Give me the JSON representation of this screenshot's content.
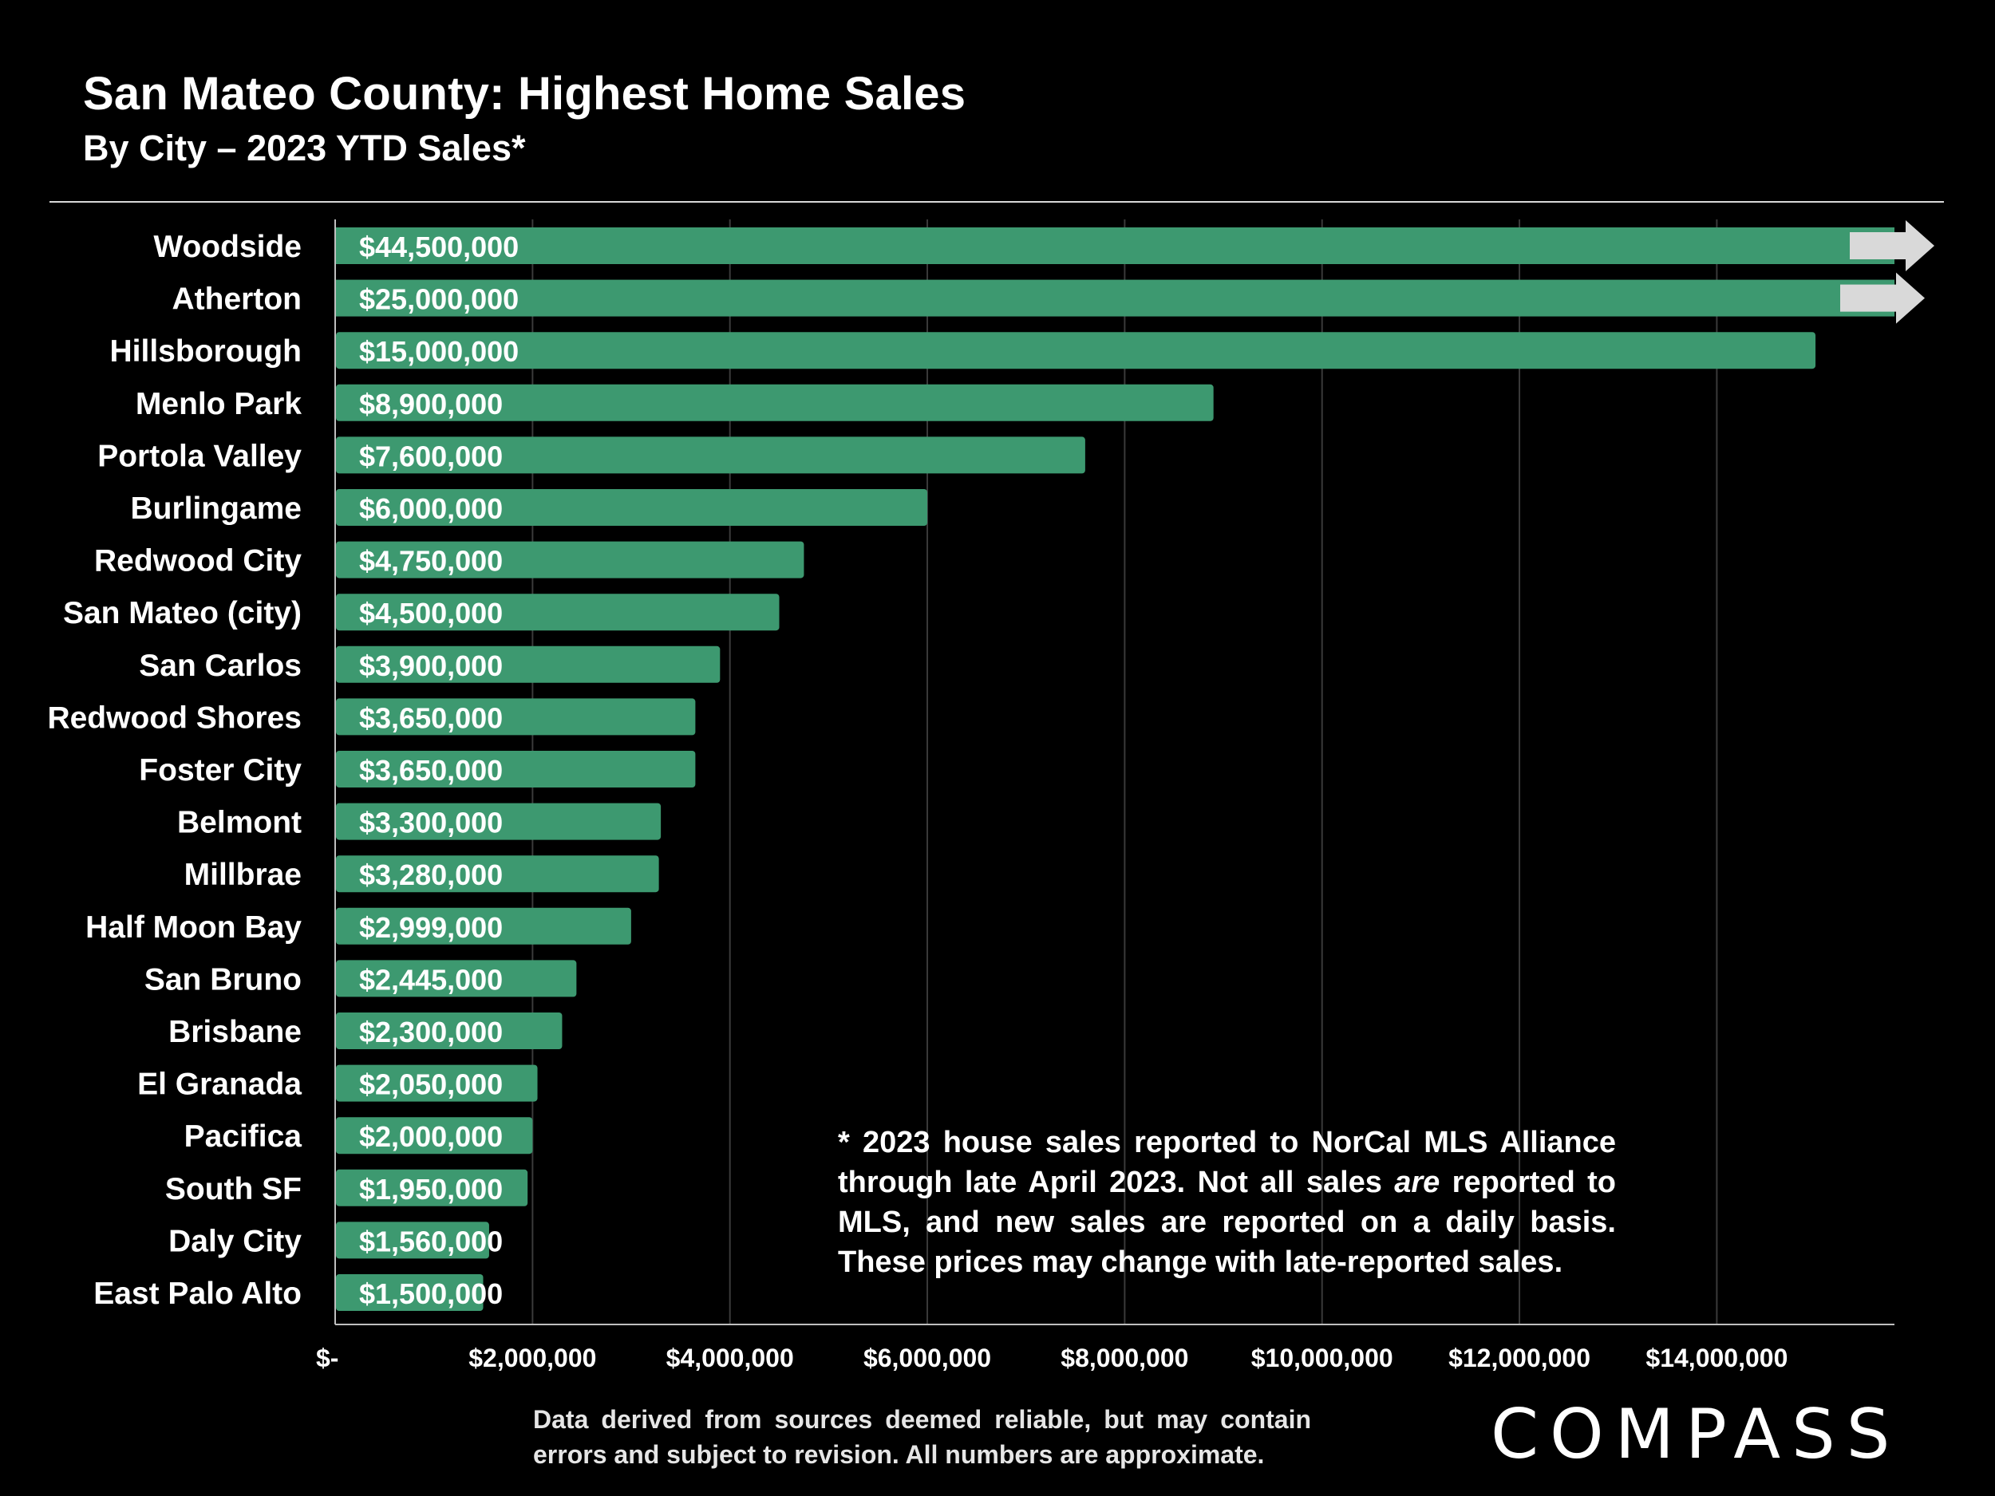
{
  "header": {
    "title": "San Mateo County: Highest Home Sales",
    "subtitle": "By City – 2023 YTD Sales*"
  },
  "chart_data": {
    "type": "bar",
    "orientation": "horizontal",
    "categories": [
      "Woodside",
      "Atherton",
      "Hillsborough",
      "Menlo Park",
      "Portola Valley",
      "Burlingame",
      "Redwood City",
      "San Mateo (city)",
      "San Carlos",
      "Redwood Shores",
      "Foster City",
      "Belmont",
      "Millbrae",
      "Half Moon Bay",
      "San Bruno",
      "Brisbane",
      "El Granada",
      "Pacifica",
      "South SF",
      "Daly City",
      "East Palo Alto"
    ],
    "values": [
      44500000,
      25000000,
      15000000,
      8900000,
      7600000,
      6000000,
      4750000,
      4500000,
      3900000,
      3650000,
      3650000,
      3300000,
      3280000,
      2999000,
      2445000,
      2300000,
      2050000,
      2000000,
      1950000,
      1560000,
      1500000
    ],
    "data_labels": [
      "$44,500,000",
      "$25,000,000",
      "$15,000,000",
      "$8,900,000",
      "$7,600,000",
      "$6,000,000",
      "$4,750,000",
      "$4,500,000",
      "$3,900,000",
      "$3,650,000",
      "$3,650,000",
      "$3,300,000",
      "$3,280,000",
      "$2,999,000",
      "$2,445,000",
      "$2,300,000",
      "$2,050,000",
      "$2,000,000",
      "$1,950,000",
      "$1,560,000",
      "$1,500,000"
    ],
    "truncated_bars": [
      "Woodside",
      "Atherton"
    ],
    "xlim": [
      0,
      15800000
    ],
    "x_ticks": [
      0,
      2000000,
      4000000,
      6000000,
      8000000,
      10000000,
      12000000,
      14000000
    ],
    "x_tick_labels": [
      "$-",
      "$2,000,000",
      "$4,000,000",
      "$6,000,000",
      "$8,000,000",
      "$10,000,000",
      "$12,000,000",
      "$14,000,000"
    ],
    "grid": true,
    "legend": "none",
    "colors": {
      "bar": "#3d9970",
      "arrow": "#d9d9d9",
      "grid": "#3a3a3a",
      "background": "#000000"
    }
  },
  "footnote": {
    "part1": "* 2023 house sales reported to NorCal MLS Alliance through late April 2023. Not all sales ",
    "emphasis": "are",
    "part2": " reported to MLS, and new sales are reported on a daily basis. These prices may change with late-reported sales."
  },
  "source_note": "Data derived from sources deemed reliable, but may contain errors and subject to revision. All numbers are approximate.",
  "logo_text": "COMPASS"
}
